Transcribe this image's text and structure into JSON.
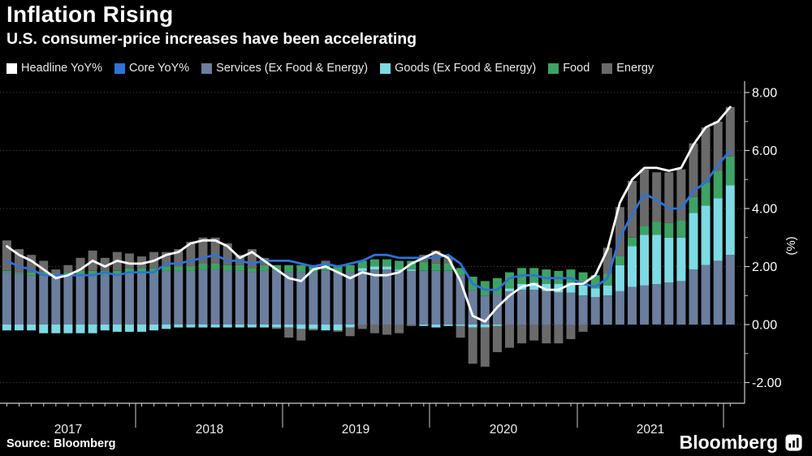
{
  "header": {
    "title": "Inflation Rising",
    "subtitle": "U.S. consumer-price increases have been accelerating"
  },
  "footer": {
    "source": "Source: Bloomberg",
    "brand": "Bloomberg"
  },
  "colors": {
    "background": "#000000",
    "grid": "#4a4a4a",
    "axis": "#cccccc",
    "text": "#ffffff"
  },
  "chart_data": {
    "type": "bar",
    "subtype": "stacked-bar-with-lines",
    "title": "Inflation Rising",
    "subtitle": "U.S. consumer-price increases have been accelerating",
    "xlabel": "",
    "ylabel": "(%)",
    "x": {
      "frequency": "monthly",
      "start": "2017-02",
      "end": "2022-01",
      "tick_years": [
        "2017",
        "2018",
        "2019",
        "2020",
        "2021"
      ]
    },
    "y": {
      "ticks": [
        8,
        6,
        4,
        2,
        0,
        -2
      ],
      "tick_labels": [
        "8.00",
        "6.00",
        "4.00",
        "2.00",
        "0.00",
        "-2.00"
      ],
      "minor_ticks": [
        7,
        5,
        3,
        1,
        -1
      ],
      "range": [
        -2.7,
        8.4
      ],
      "grid": "dotted",
      "side": "right"
    },
    "legend_position": "top",
    "series": [
      {
        "name": "Headline YoY%",
        "type": "line",
        "color": "#ffffff",
        "values": [
          2.7,
          2.4,
          2.2,
          1.9,
          1.6,
          1.7,
          1.9,
          2.2,
          2.0,
          2.2,
          2.1,
          2.1,
          2.2,
          2.4,
          2.5,
          2.8,
          2.9,
          2.9,
          2.7,
          2.3,
          2.5,
          2.2,
          1.9,
          1.6,
          1.5,
          1.9,
          2.0,
          1.8,
          1.6,
          1.8,
          1.7,
          1.7,
          1.8,
          2.1,
          2.3,
          2.5,
          2.3,
          1.5,
          0.3,
          0.1,
          0.6,
          1.0,
          1.3,
          1.4,
          1.2,
          1.2,
          1.4,
          1.4,
          1.7,
          2.6,
          4.2,
          5.0,
          5.4,
          5.4,
          5.3,
          5.4,
          6.2,
          6.8,
          7.0,
          7.5
        ]
      },
      {
        "name": "Core YoY%",
        "type": "line",
        "color": "#2f72d8",
        "values": [
          2.2,
          2.0,
          1.9,
          1.7,
          1.7,
          1.7,
          1.7,
          1.7,
          1.8,
          1.7,
          1.8,
          1.8,
          1.8,
          2.1,
          2.1,
          2.2,
          2.3,
          2.4,
          2.2,
          2.2,
          2.1,
          2.2,
          2.2,
          2.2,
          2.1,
          2.0,
          2.1,
          2.0,
          2.1,
          2.2,
          2.4,
          2.4,
          2.3,
          2.3,
          2.3,
          2.3,
          2.4,
          2.1,
          1.4,
          1.2,
          1.2,
          1.6,
          1.7,
          1.7,
          1.6,
          1.6,
          1.6,
          1.4,
          1.3,
          1.6,
          3.0,
          3.8,
          4.5,
          4.3,
          4.0,
          4.0,
          4.6,
          4.9,
          5.5,
          6.0
        ]
      },
      {
        "name": "Services (Ex Food & Energy)",
        "type": "bar",
        "color": "#6b7e9d",
        "values": [
          1.8,
          1.75,
          1.7,
          1.7,
          1.65,
          1.7,
          1.7,
          1.7,
          1.7,
          1.7,
          1.75,
          1.75,
          1.75,
          1.85,
          1.85,
          1.85,
          1.9,
          1.9,
          1.85,
          1.85,
          1.8,
          1.85,
          1.85,
          1.8,
          1.8,
          1.8,
          1.85,
          1.8,
          1.8,
          1.85,
          1.9,
          1.9,
          1.85,
          1.85,
          1.85,
          1.85,
          1.85,
          1.7,
          1.2,
          1.0,
          1.05,
          1.15,
          1.2,
          1.2,
          1.15,
          1.1,
          1.1,
          1.0,
          0.95,
          1.0,
          1.15,
          1.3,
          1.35,
          1.4,
          1.45,
          1.5,
          1.9,
          2.05,
          2.2,
          2.4
        ]
      },
      {
        "name": "Goods (Ex Food & Energy)",
        "type": "bar",
        "color": "#7edae4",
        "values": [
          -0.2,
          -0.2,
          -0.2,
          -0.3,
          -0.3,
          -0.3,
          -0.3,
          -0.3,
          -0.2,
          -0.25,
          -0.25,
          -0.25,
          -0.2,
          -0.15,
          -0.1,
          -0.1,
          -0.1,
          -0.1,
          -0.1,
          -0.1,
          -0.1,
          -0.1,
          -0.1,
          -0.1,
          -0.15,
          -0.15,
          -0.2,
          -0.2,
          -0.1,
          0.1,
          0.1,
          0.1,
          0.05,
          0.05,
          -0.05,
          -0.1,
          -0.05,
          -0.05,
          -0.1,
          -0.1,
          -0.05,
          0.1,
          0.2,
          0.25,
          0.25,
          0.3,
          0.35,
          0.35,
          0.3,
          0.35,
          0.9,
          1.4,
          1.75,
          1.7,
          1.55,
          1.5,
          1.95,
          2.05,
          2.15,
          2.4
        ]
      },
      {
        "name": "Food",
        "type": "bar",
        "color": "#3ea265",
        "values": [
          0.05,
          0.05,
          0.1,
          0.1,
          0.1,
          0.1,
          0.15,
          0.15,
          0.15,
          0.15,
          0.2,
          0.2,
          0.2,
          0.15,
          0.15,
          0.15,
          0.2,
          0.2,
          0.2,
          0.2,
          0.15,
          0.2,
          0.2,
          0.25,
          0.25,
          0.25,
          0.25,
          0.25,
          0.25,
          0.25,
          0.25,
          0.25,
          0.3,
          0.3,
          0.3,
          0.25,
          0.25,
          0.25,
          0.45,
          0.5,
          0.55,
          0.55,
          0.55,
          0.5,
          0.5,
          0.45,
          0.45,
          0.45,
          0.45,
          0.4,
          0.3,
          0.3,
          0.3,
          0.45,
          0.5,
          0.6,
          0.55,
          0.8,
          0.95,
          1.0
        ]
      },
      {
        "name": "Energy",
        "type": "bar",
        "color": "#6a6a6a",
        "values": [
          1.05,
          0.8,
          0.6,
          0.4,
          0.15,
          0.25,
          0.45,
          0.7,
          0.45,
          0.65,
          0.5,
          0.4,
          0.55,
          0.5,
          0.6,
          0.85,
          0.9,
          0.9,
          0.75,
          0.35,
          0.65,
          0.25,
          -0.05,
          -0.35,
          -0.4,
          -0.05,
          0.1,
          -0.05,
          -0.3,
          -0.15,
          -0.3,
          -0.35,
          -0.3,
          -0.05,
          0.25,
          0.45,
          0.2,
          -0.4,
          -1.25,
          -1.35,
          -0.9,
          -0.8,
          -0.65,
          -0.55,
          -0.65,
          -0.65,
          -0.5,
          -0.25,
          0.0,
          0.9,
          1.7,
          1.95,
          1.95,
          1.7,
          1.75,
          1.75,
          1.85,
          1.9,
          1.7,
          1.7
        ]
      }
    ]
  }
}
